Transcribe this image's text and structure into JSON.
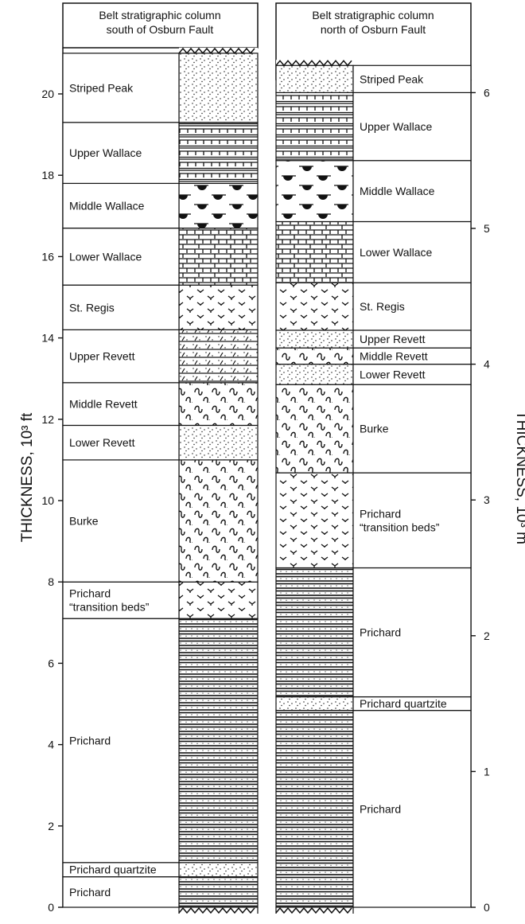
{
  "headers": {
    "south": [
      "Belt stratigraphic column",
      "south of Osburn Fault"
    ],
    "north": [
      "Belt stratigraphic column",
      "north of Osburn Fault"
    ]
  },
  "left_axis": {
    "title": "THICKNESS, 10³ ft",
    "ticks": [
      0,
      2,
      4,
      6,
      8,
      10,
      12,
      14,
      16,
      18,
      20
    ]
  },
  "right_axis": {
    "title": "THICKNESS, 10³ m",
    "ticks": [
      0,
      1,
      2,
      3,
      4,
      5,
      6
    ]
  },
  "south_units": [
    {
      "label": [
        "Prichard"
      ],
      "from_kft": 0,
      "to_kft": 0.75,
      "pattern": "shale"
    },
    {
      "label": [
        "Prichard quartzite"
      ],
      "from_kft": 0.75,
      "to_kft": 1.1,
      "pattern": "quartzite"
    },
    {
      "label": [
        "Prichard"
      ],
      "from_kft": 1.1,
      "to_kft": 7.1,
      "pattern": "shale"
    },
    {
      "label": [
        "Prichard",
        "“transition beds”"
      ],
      "from_kft": 7.1,
      "to_kft": 8.0,
      "pattern": "siltite"
    },
    {
      "label": [
        "Burke"
      ],
      "from_kft": 8.0,
      "to_kft": 11.0,
      "pattern": "wavy"
    },
    {
      "label": [
        "Lower Revett"
      ],
      "from_kft": 11.0,
      "to_kft": 11.85,
      "pattern": "quartzite"
    },
    {
      "label": [
        "Middle Revett"
      ],
      "from_kft": 11.85,
      "to_kft": 12.9,
      "pattern": "wavy"
    },
    {
      "label": [
        "Upper Revett"
      ],
      "from_kft": 12.9,
      "to_kft": 14.2,
      "pattern": "mixed"
    },
    {
      "label": [
        "St. Regis"
      ],
      "from_kft": 14.2,
      "to_kft": 15.3,
      "pattern": "siltite"
    },
    {
      "label": [
        "Lower Wallace"
      ],
      "from_kft": 15.3,
      "to_kft": 16.7,
      "pattern": "carbonate"
    },
    {
      "label": [
        "Middle Wallace"
      ],
      "from_kft": 16.7,
      "to_kft": 17.8,
      "pattern": "stromatolite"
    },
    {
      "label": [
        "Upper Wallace"
      ],
      "from_kft": 17.8,
      "to_kft": 19.3,
      "pattern": "upperwallace"
    },
    {
      "label": [
        "Striped Peak"
      ],
      "from_kft": 19.3,
      "to_kft": 21.0,
      "pattern": "quartzite"
    }
  ],
  "north_units": [
    {
      "label": [
        "Prichard"
      ],
      "from_km": 0,
      "to_km": 1.45,
      "pattern": "shale"
    },
    {
      "label": [
        "Prichard quartzite"
      ],
      "from_km": 1.45,
      "to_km": 1.55,
      "pattern": "quartzite"
    },
    {
      "label": [
        "Prichard"
      ],
      "from_km": 1.55,
      "to_km": 2.5,
      "pattern": "shale"
    },
    {
      "label": [
        "Prichard",
        "“transition beds”"
      ],
      "from_km": 2.5,
      "to_km": 3.2,
      "pattern": "siltite"
    },
    {
      "label": [
        "Burke"
      ],
      "from_km": 3.2,
      "to_km": 3.85,
      "pattern": "wavy"
    },
    {
      "label": [
        "Lower Revett"
      ],
      "from_km": 3.85,
      "to_km": 4.0,
      "pattern": "quartzite"
    },
    {
      "label": [
        "Middle Revett"
      ],
      "from_km": 4.0,
      "to_km": 4.12,
      "pattern": "wavy"
    },
    {
      "label": [
        "Upper Revett"
      ],
      "from_km": 4.12,
      "to_km": 4.25,
      "pattern": "quartzite"
    },
    {
      "label": [
        "St. Regis"
      ],
      "from_km": 4.25,
      "to_km": 4.6,
      "pattern": "siltite"
    },
    {
      "label": [
        "Lower Wallace"
      ],
      "from_km": 4.6,
      "to_km": 5.05,
      "pattern": "carbonate"
    },
    {
      "label": [
        "Middle Wallace"
      ],
      "from_km": 5.05,
      "to_km": 5.5,
      "pattern": "stromatolite"
    },
    {
      "label": [
        "Upper Wallace"
      ],
      "from_km": 5.5,
      "to_km": 6.0,
      "pattern": "upperwallace"
    },
    {
      "label": [
        "Striped Peak"
      ],
      "from_km": 6.0,
      "to_km": 6.2,
      "pattern": "quartzite"
    }
  ]
}
